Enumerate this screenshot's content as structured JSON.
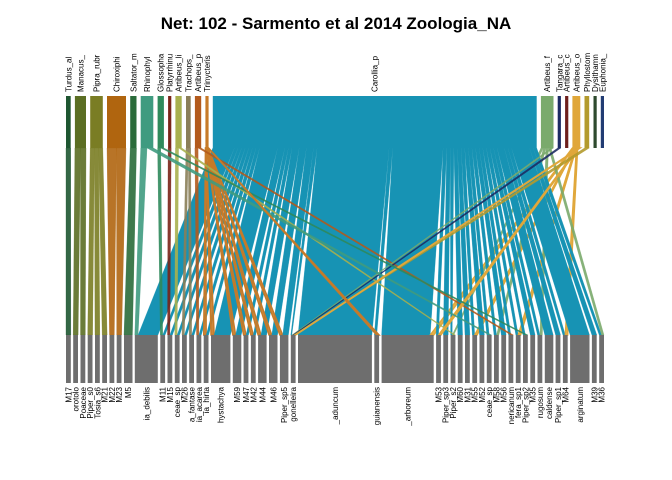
{
  "chart_data": {
    "type": "bipartite-web",
    "title": "Net: 102 - Sarmento et al 2014 Zoologia_NA",
    "higher_level": [
      {
        "label": "Turdus_al",
        "color": "#1e5631",
        "w": 3
      },
      {
        "label": "Manacus_",
        "color": "#5b6e23",
        "w": 7
      },
      {
        "label": "Pipra_rubr",
        "color": "#7a7d24",
        "w": 8
      },
      {
        "label": "Chiroxiphi",
        "color": "#b0650f",
        "w": 12
      },
      {
        "label": "Saltator_m",
        "color": "#2a6b3a",
        "w": 4
      },
      {
        "label": "Rhinophyl",
        "color": "#3f9b80",
        "w": 8
      },
      {
        "label": "Glossopha",
        "color": "#2f8a5c",
        "w": 4
      },
      {
        "label": "Platyrrhinu",
        "color": "#7a2418",
        "w": 2
      },
      {
        "label": "Artibeus_li",
        "color": "#a8b04e",
        "w": 4
      },
      {
        "label": "Trachops_",
        "color": "#8a7e58",
        "w": 3
      },
      {
        "label": "Artibeus_p",
        "color": "#b35a1c",
        "w": 4
      },
      {
        "label": "Trinycteris",
        "color": "#c77a28",
        "w": 2
      },
      {
        "label": "Carollia_p",
        "color": "#1793b4",
        "w": 205
      },
      {
        "label": "Artibeus_f",
        "color": "#7aaa6c",
        "w": 8
      },
      {
        "label": "Tangara_c",
        "color": "#1c2c63",
        "w": 2
      },
      {
        "label": "Artibeus_c",
        "color": "#6e1f1b",
        "w": 2
      },
      {
        "label": "Artibeus_o",
        "color": "#e0a73a",
        "w": 5
      },
      {
        "label": "Phyllostom",
        "color": "#b39a2c",
        "w": 3
      },
      {
        "label": "Dysithamn",
        "color": "#2e4a2e",
        "w": 2
      },
      {
        "label": "Euphonia_",
        "color": "#223c73",
        "w": 2
      }
    ],
    "lower_level": [
      {
        "labels": [
          "M17"
        ],
        "n": 1
      },
      {
        "labels": [
          "orotolo"
        ],
        "n": 1
      },
      {
        "labels": [
          "Poaceae"
        ],
        "n": 1
      },
      {
        "labels": [
          "Piper_s0"
        ],
        "n": 1
      },
      {
        "labels": [
          "Tosia_s6"
        ],
        "n": 1
      },
      {
        "labels": [
          "M21"
        ],
        "n": 1
      },
      {
        "labels": [
          "M22"
        ],
        "n": 1
      },
      {
        "labels": [
          "M23"
        ],
        "n": 1
      },
      {
        "labels": [
          "M5"
        ],
        "n": 2
      },
      {
        "labels": [
          "ia_debilis"
        ],
        "n": 6
      },
      {
        "labels": [
          "M11"
        ],
        "n": 1
      },
      {
        "labels": [
          "M15"
        ],
        "n": 1
      },
      {
        "labels": [
          "ceae_sp"
        ],
        "n": 1
      },
      {
        "labels": [
          "M26"
        ],
        "n": 1
      },
      {
        "labels": [
          "a_fantase"
        ],
        "n": 1
      },
      {
        "labels": [
          "ia_acarea"
        ],
        "n": 1
      },
      {
        "labels": [
          "ia_hirta"
        ],
        "n": 1
      },
      {
        "labels": [
          "hystachya"
        ],
        "n": 5
      },
      {
        "labels": [
          "M59"
        ],
        "n": 2
      },
      {
        "labels": [
          "M47"
        ],
        "n": 1
      },
      {
        "labels": [
          "M42"
        ],
        "n": 1
      },
      {
        "labels": [
          "M44"
        ],
        "n": 2
      },
      {
        "labels": [
          "M46"
        ],
        "n": 2
      },
      {
        "labels": [
          "Piper_sp5"
        ],
        "n": 2
      },
      {
        "labels": [
          "gonelleira"
        ],
        "n": 1
      },
      {
        "labels": [
          "_aduncum"
        ],
        "n": 20
      },
      {
        "labels": [
          "guianensis"
        ],
        "n": 1
      },
      {
        "labels": [
          "_arboreum"
        ],
        "n": 14
      },
      {
        "labels": [
          "M53"
        ],
        "n": 1
      },
      {
        "labels": [
          "Piper_sp3"
        ],
        "n": 1
      },
      {
        "labels": [
          "Piper_s2"
        ],
        "n": 1
      },
      {
        "labels": [
          "M60"
        ],
        "n": 1
      },
      {
        "labels": [
          "M31"
        ],
        "n": 1
      },
      {
        "labels": [
          "M55"
        ],
        "n": 1
      },
      {
        "labels": [
          "M52"
        ],
        "n": 1
      },
      {
        "labels": [
          "ceae_sp"
        ],
        "n": 1
      },
      {
        "labels": [
          "M58"
        ],
        "n": 1
      },
      {
        "labels": [
          "M56"
        ],
        "n": 1
      },
      {
        "labels": [
          "nericanum"
        ],
        "n": 1
      },
      {
        "labels": [
          "fera_sp1"
        ],
        "n": 1
      },
      {
        "labels": [
          "Piper_sp2"
        ],
        "n": 1
      },
      {
        "labels": [
          "M35"
        ],
        "n": 1
      },
      {
        "labels": [
          "rugosum"
        ],
        "n": 1
      },
      {
        "labels": [
          "caldense"
        ],
        "n": 2
      },
      {
        "labels": [
          "Piper_sp1"
        ],
        "n": 1
      },
      {
        "labels": [
          "M64"
        ],
        "n": 1
      },
      {
        "labels": [
          "arginatum"
        ],
        "n": 5
      },
      {
        "labels": [
          "M39"
        ],
        "n": 1
      },
      {
        "labels": [
          "M36"
        ],
        "n": 1
      }
    ]
  }
}
